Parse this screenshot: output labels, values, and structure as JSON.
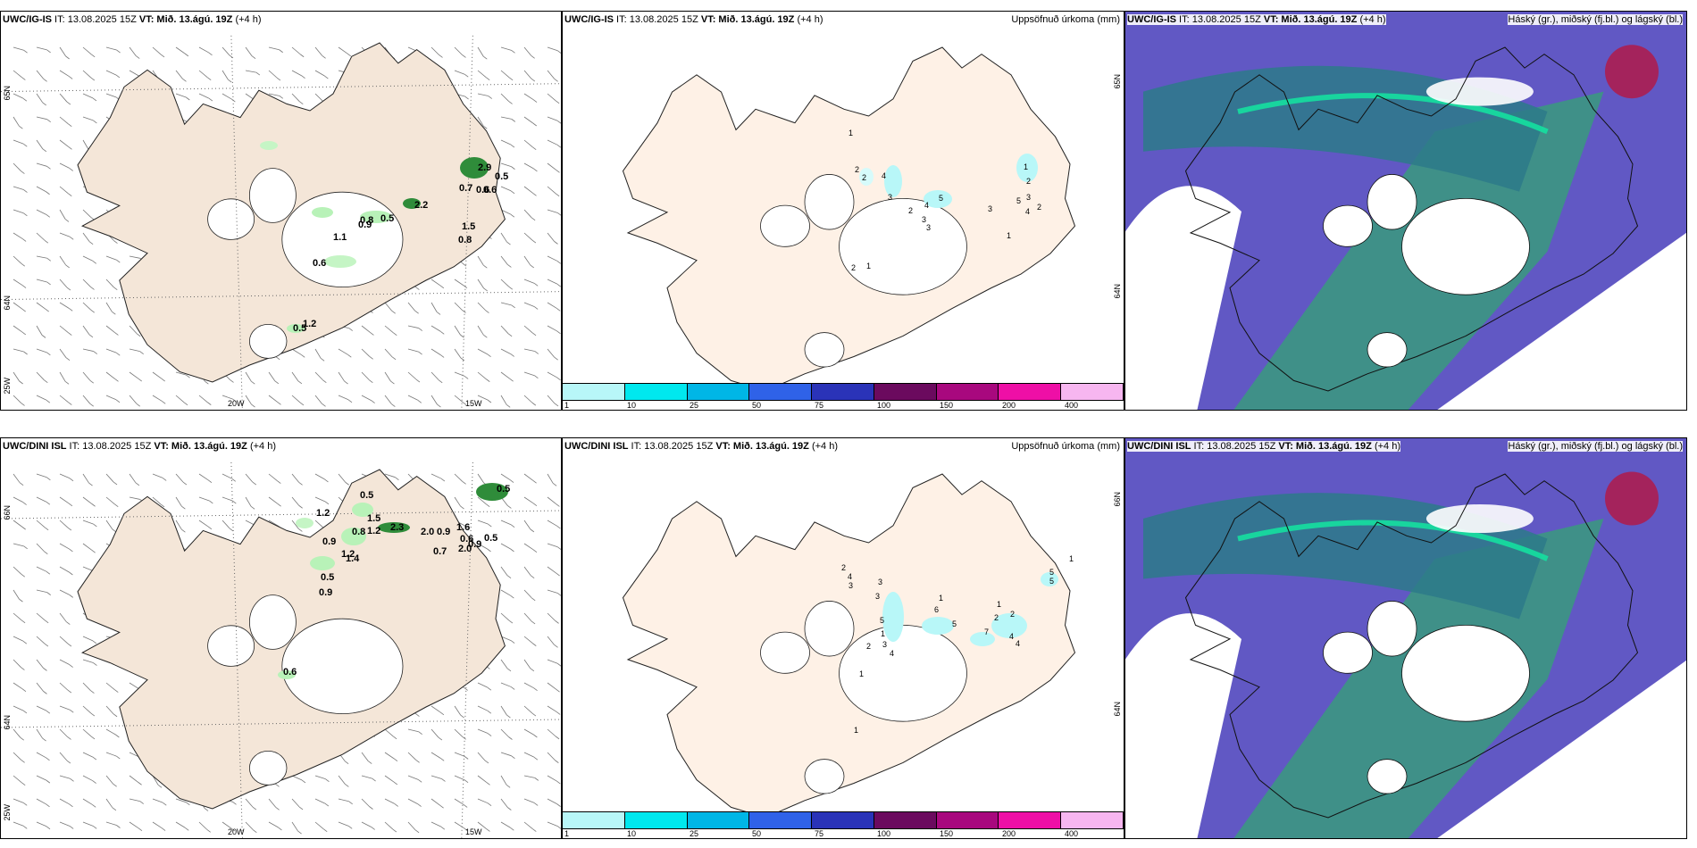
{
  "rows": [
    {
      "wind": {
        "model": "UWC/IG-IS",
        "run": " IT: 13.08.2025 15Z ",
        "vt": "VT: Mið. 13.ágú. 19Z",
        "lead": " (+4 h)",
        "lat_labels": [
          "65N",
          "64N",
          "25W"
        ],
        "lon_labels": [
          "20W",
          "15W"
        ],
        "values": [
          "2.9",
          "0.5",
          "0.7",
          "0.6",
          "0.6",
          "2.2",
          "0.5",
          "0.8",
          "0.9",
          "1.5",
          "0.8",
          "1.1",
          "0.6",
          "0.5",
          "1.2"
        ]
      },
      "precip": {
        "model": "UWC/IG-IS",
        "run": " IT: 13.08.2025 15Z ",
        "vt": "VT: Mið. 13.ágú. 19Z",
        "lead": " (+4 h)",
        "right_title": "Uppsöfnuð úrkoma (mm)",
        "lat_labels": [
          "65N",
          "64N"
        ],
        "values": [
          "1",
          "2",
          "2",
          "4",
          "3",
          "2",
          "4",
          "3",
          "3",
          "5",
          "3",
          "5",
          "1",
          "2",
          "3",
          "4",
          "2",
          "1",
          "1",
          "2"
        ],
        "scale_ticks": [
          "1",
          "10",
          "25",
          "50",
          "75",
          "100",
          "150",
          "200",
          "400"
        ],
        "scale_colors": [
          "#b8f7f8",
          "#00e8ee",
          "#00b6e6",
          "#2f62e8",
          "#2a33b8",
          "#6b0a5e",
          "#a8087e",
          "#ee0fa6",
          "#f7b6f0"
        ]
      },
      "cloud": {
        "model": "UWC/IG-IS",
        "run": " IT: 13.08.2025 15Z ",
        "vt": "VT: Mið. 13.ágú. 19Z",
        "lead": " (+4 h)",
        "right_title": "Háský (gr.), miðský (fj.bl.) og lágský (bl.)"
      }
    },
    {
      "wind": {
        "model": "UWC/DINI ISL",
        "run": " IT: 13.08.2025 15Z ",
        "vt": "VT: Mið. 13.ágú. 19Z",
        "lead": " (+4 h)",
        "lat_labels": [
          "66N",
          "64N",
          "25W"
        ],
        "lon_labels": [
          "20W",
          "15W"
        ],
        "values": [
          "0.5",
          "0.5",
          "1.2",
          "1.5",
          "1.2",
          "2.3",
          "2.0",
          "0.9",
          "1.6",
          "0.6",
          "0.5",
          "0.9",
          "0.7",
          "2.0",
          "0.8",
          "0.9",
          "1.2",
          "1.4",
          "0.5",
          "0.9",
          "0.6"
        ]
      },
      "precip": {
        "model": "UWC/DINI ISL",
        "run": " IT: 13.08.2025 15Z ",
        "vt": "VT: Mið. 13.ágú. 19Z",
        "lead": " (+4 h)",
        "right_title": "Uppsöfnuð úrkoma (mm)",
        "lat_labels": [
          "66N",
          "64N"
        ],
        "values": [
          "2",
          "4",
          "3",
          "3",
          "3",
          "5",
          "1",
          "6",
          "1",
          "5",
          "7",
          "1",
          "2",
          "2",
          "4",
          "4",
          "5",
          "5",
          "1",
          "3",
          "4",
          "1",
          "2",
          "1"
        ],
        "scale_ticks": [
          "1",
          "10",
          "25",
          "50",
          "75",
          "100",
          "150",
          "200",
          "400"
        ],
        "scale_colors": [
          "#b8f7f8",
          "#00e8ee",
          "#00b6e6",
          "#2f62e8",
          "#2a33b8",
          "#6b0a5e",
          "#a8087e",
          "#ee0fa6",
          "#f7b6f0"
        ]
      },
      "cloud": {
        "model": "UWC/DINI ISL",
        "run": " IT: 13.08.2025 15Z ",
        "vt": "VT: Mið. 13.ágú. 19Z",
        "lead": " (+4 h)",
        "right_title": "Háský (gr.), miðský (fj.bl.) og lágský (bl.)"
      }
    }
  ]
}
